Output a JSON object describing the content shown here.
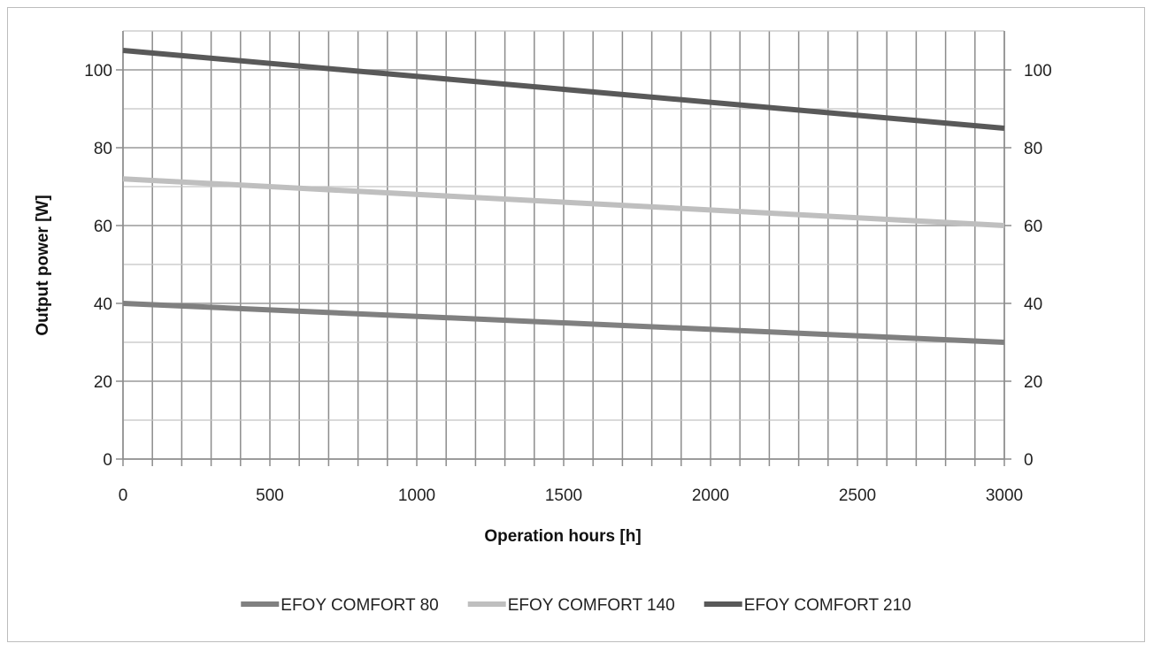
{
  "chart_data": {
    "type": "line",
    "title": "",
    "xlabel": "Operation hours [h]",
    "ylabel": "Output power [W]",
    "xlim": [
      0,
      3000
    ],
    "ylim": [
      0,
      110
    ],
    "x_ticks": [
      0,
      500,
      1000,
      1500,
      2000,
      2500,
      3000
    ],
    "y_ticks": [
      0,
      20,
      40,
      60,
      80,
      100
    ],
    "x_tick_labels": [
      "0",
      "500",
      "1000",
      "1500",
      "2000",
      "2500",
      "3000"
    ],
    "y_tick_labels": [
      "0",
      "20",
      "40",
      "60",
      "80",
      "100"
    ],
    "x_minor_step": 100,
    "y_minor_step": 10,
    "grid": true,
    "secondary_y_axis": true,
    "legend_position": "bottom",
    "series": [
      {
        "name": "EFOY COMFORT 80",
        "color": "#808080",
        "x": [
          0,
          3000
        ],
        "y": [
          40,
          30
        ]
      },
      {
        "name": "EFOY COMFORT 140",
        "color": "#bfbfbf",
        "x": [
          0,
          3000
        ],
        "y": [
          72,
          60
        ]
      },
      {
        "name": "EFOY COMFORT 210",
        "color": "#595959",
        "x": [
          0,
          3000
        ],
        "y": [
          105,
          85
        ]
      }
    ]
  }
}
